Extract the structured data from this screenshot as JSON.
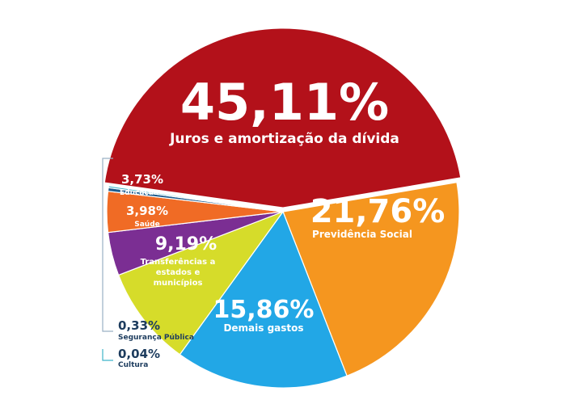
{
  "chart_data": {
    "type": "pie",
    "slices": [
      {
        "name": "Juros e amortização da dívida",
        "value_label": "45,11%",
        "value": 45.11,
        "color": "#b3111a"
      },
      {
        "name": "Previdência Social",
        "value_label": "21,76%",
        "value": 21.76,
        "color": "#f5961f"
      },
      {
        "name": "Demais gastos",
        "value_label": "15,86%",
        "value": 15.86,
        "color": "#22a7e6"
      },
      {
        "name": "Transferências a estados e municípios",
        "value_label": "9,19%",
        "value": 9.19,
        "color": "#d6dc2a"
      },
      {
        "name": "Saúde",
        "value_label": "3,98%",
        "value": 3.98,
        "color": "#7b2e93"
      },
      {
        "name": "Educação",
        "value_label": "3,73%",
        "value": 3.73,
        "color": "#f06b25"
      },
      {
        "name": "Segurança Pública",
        "value_label": "0,33%",
        "value": 0.33,
        "color": "#1d5c8e"
      },
      {
        "name": "Cultura",
        "value_label": "0,04%",
        "value": 0.04,
        "color": "#3fb5c9"
      }
    ],
    "label_lines": {
      "transferencias": [
        "Transferências a",
        "estados e",
        "municípios"
      ]
    }
  }
}
